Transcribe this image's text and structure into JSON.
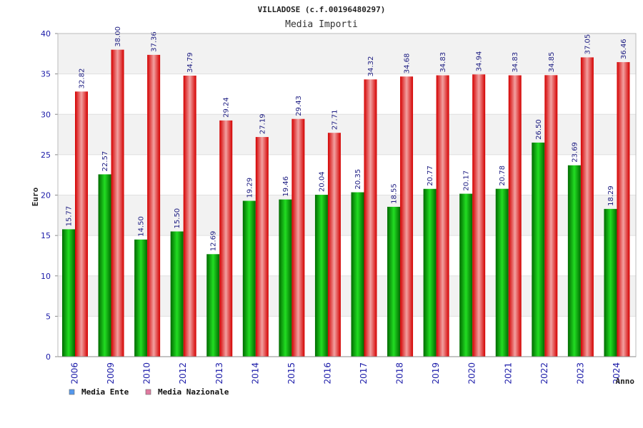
{
  "chart_data": {
    "type": "bar",
    "title": "VILLADOSE (c.f.00196480297)",
    "subtitle": "Media Importi",
    "xlabel": "Anno",
    "ylabel": "Euro",
    "ylim": [
      0,
      40
    ],
    "yticks": [
      0,
      5,
      10,
      15,
      20,
      25,
      30,
      35,
      40
    ],
    "grid": true,
    "legend_position": "bottom-left",
    "categories": [
      "2006",
      "2009",
      "2010",
      "2012",
      "2013",
      "2014",
      "2015",
      "2016",
      "2017",
      "2018",
      "2019",
      "2020",
      "2021",
      "2022",
      "2023",
      "2024"
    ],
    "series": [
      {
        "name": "Media Ente",
        "bar_color": "#0fb80f",
        "legend_color": "#5599ee",
        "values": [
          15.77,
          22.57,
          14.5,
          15.5,
          12.69,
          19.29,
          19.46,
          20.04,
          20.35,
          18.55,
          20.77,
          20.17,
          20.78,
          26.5,
          23.69,
          18.29
        ],
        "labels": [
          "15.77",
          "22.57",
          "14.50",
          "15.50",
          "12.69",
          "19.29",
          "19.46",
          "20.04",
          "20.35",
          "18.55",
          "20.77",
          "20.17",
          "20.78",
          "26.50",
          "23.69",
          "18.29"
        ]
      },
      {
        "name": "Media Nazionale",
        "bar_color": "#ee1c24",
        "legend_color": "#e07aa0",
        "values": [
          32.82,
          38.0,
          37.36,
          34.79,
          29.24,
          27.19,
          29.43,
          27.71,
          34.32,
          34.68,
          34.83,
          34.94,
          34.83,
          34.85,
          37.05,
          36.46
        ],
        "labels": [
          "32.82",
          "38.00",
          "37.36",
          "34.79",
          "29.24",
          "27.19",
          "29.43",
          "27.71",
          "34.32",
          "34.68",
          "34.83",
          "34.94",
          "34.83",
          "34.85",
          "37.05",
          "36.46"
        ]
      }
    ]
  }
}
